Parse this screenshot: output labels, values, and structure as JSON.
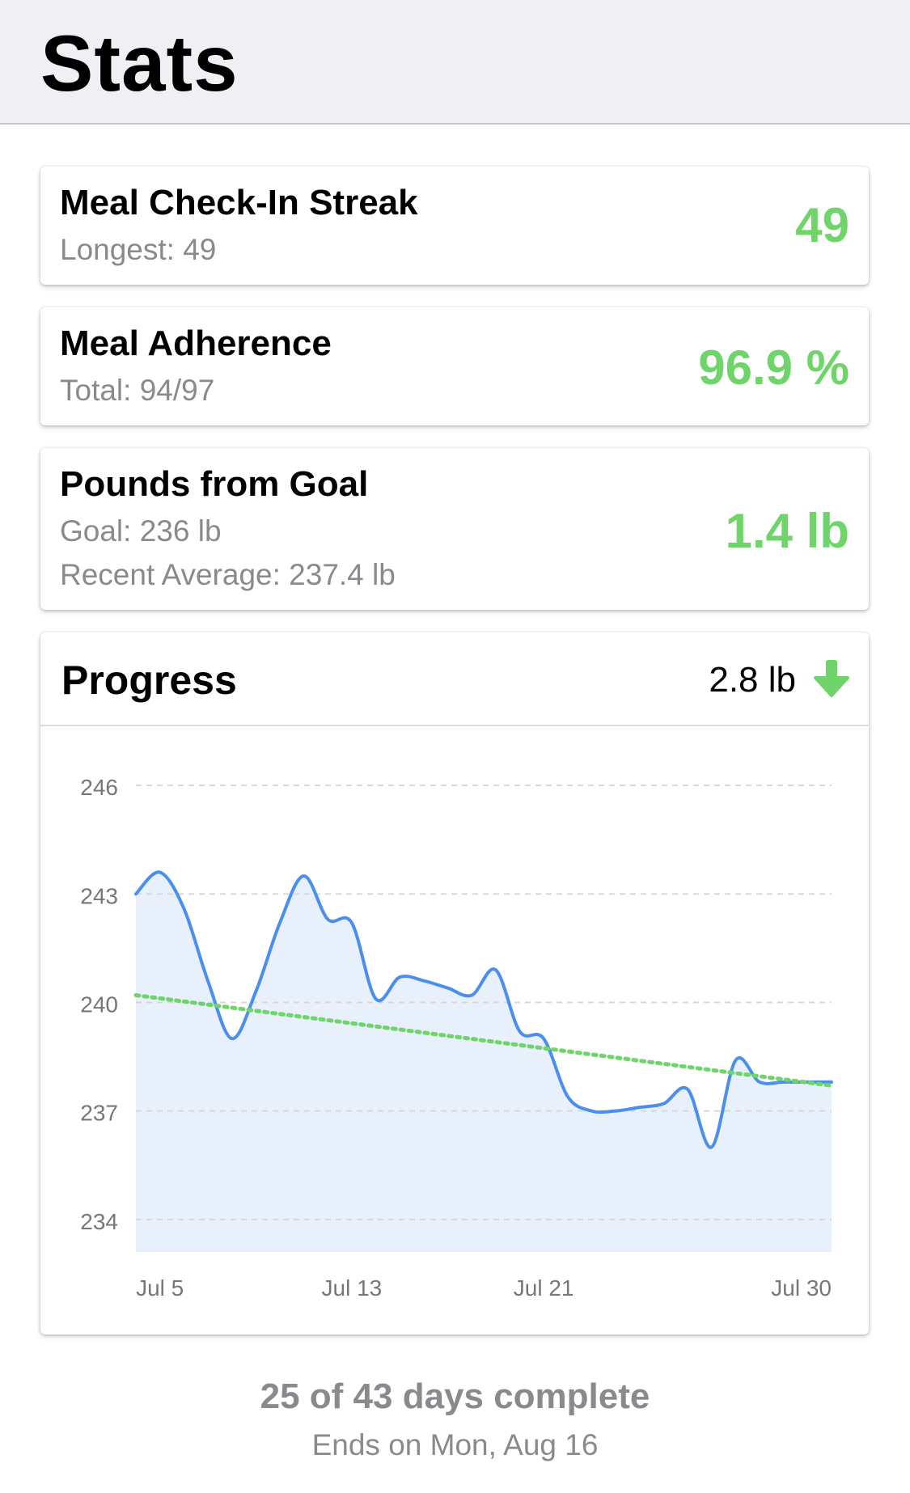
{
  "header": {
    "title": "Stats"
  },
  "cards": [
    {
      "title": "Meal Check-In Streak",
      "subs": [
        "Longest: 49"
      ],
      "value": "49"
    },
    {
      "title": "Meal Adherence",
      "subs": [
        "Total: 94/97"
      ],
      "value": "96.9 %"
    },
    {
      "title": "Pounds from Goal",
      "subs": [
        "Goal: 236 lb",
        "Recent Average: 237.4 lb"
      ],
      "value": "1.4 lb"
    }
  ],
  "progress": {
    "title": "Progress",
    "change": "2.8 lb",
    "change_icon": "arrow-down-icon"
  },
  "chart_data": {
    "type": "line",
    "y_tick_labels": [
      "246",
      "243",
      "240",
      "237",
      "234"
    ],
    "y_ticks": [
      246,
      243,
      240,
      237,
      234
    ],
    "ylim": [
      233.1,
      247.1
    ],
    "x_tick_labels": [
      "Jul 5",
      "Jul 13",
      "Jul 21",
      "Jul 30"
    ],
    "x_ticks": [
      1,
      9,
      17,
      26
    ],
    "grid": true,
    "series": [
      {
        "style": "smooth-line-with-area",
        "color": "#4a8ff0",
        "x": [
          0,
          1,
          2,
          3,
          4,
          5,
          6,
          7,
          8,
          9,
          10,
          11,
          12,
          13,
          14,
          15,
          16,
          17,
          18,
          19,
          20,
          21,
          22,
          23,
          24,
          25,
          26,
          27,
          28,
          29
        ],
        "y": [
          243.0,
          243.6,
          242.6,
          240.6,
          239.0,
          240.3,
          242.2,
          243.5,
          242.3,
          242.2,
          240.1,
          240.7,
          240.6,
          240.4,
          240.2,
          240.9,
          239.2,
          239.0,
          237.4,
          237.0,
          237.0,
          237.1,
          237.2,
          237.6,
          236.0,
          238.4,
          237.8,
          237.8,
          237.8,
          237.8
        ]
      },
      {
        "style": "dotted-trend",
        "color": "#6fd46a",
        "x": [
          0,
          29
        ],
        "y": [
          240.2,
          237.7
        ]
      }
    ]
  },
  "footer": {
    "days": "25 of 43 days complete",
    "ends": "Ends on Mon, Aug 16"
  },
  "colors": {
    "accent_green": "#6fd46a",
    "line_blue": "#4a8ff0",
    "area_fill": "#e8f0fc",
    "muted": "#8a8a8e"
  }
}
